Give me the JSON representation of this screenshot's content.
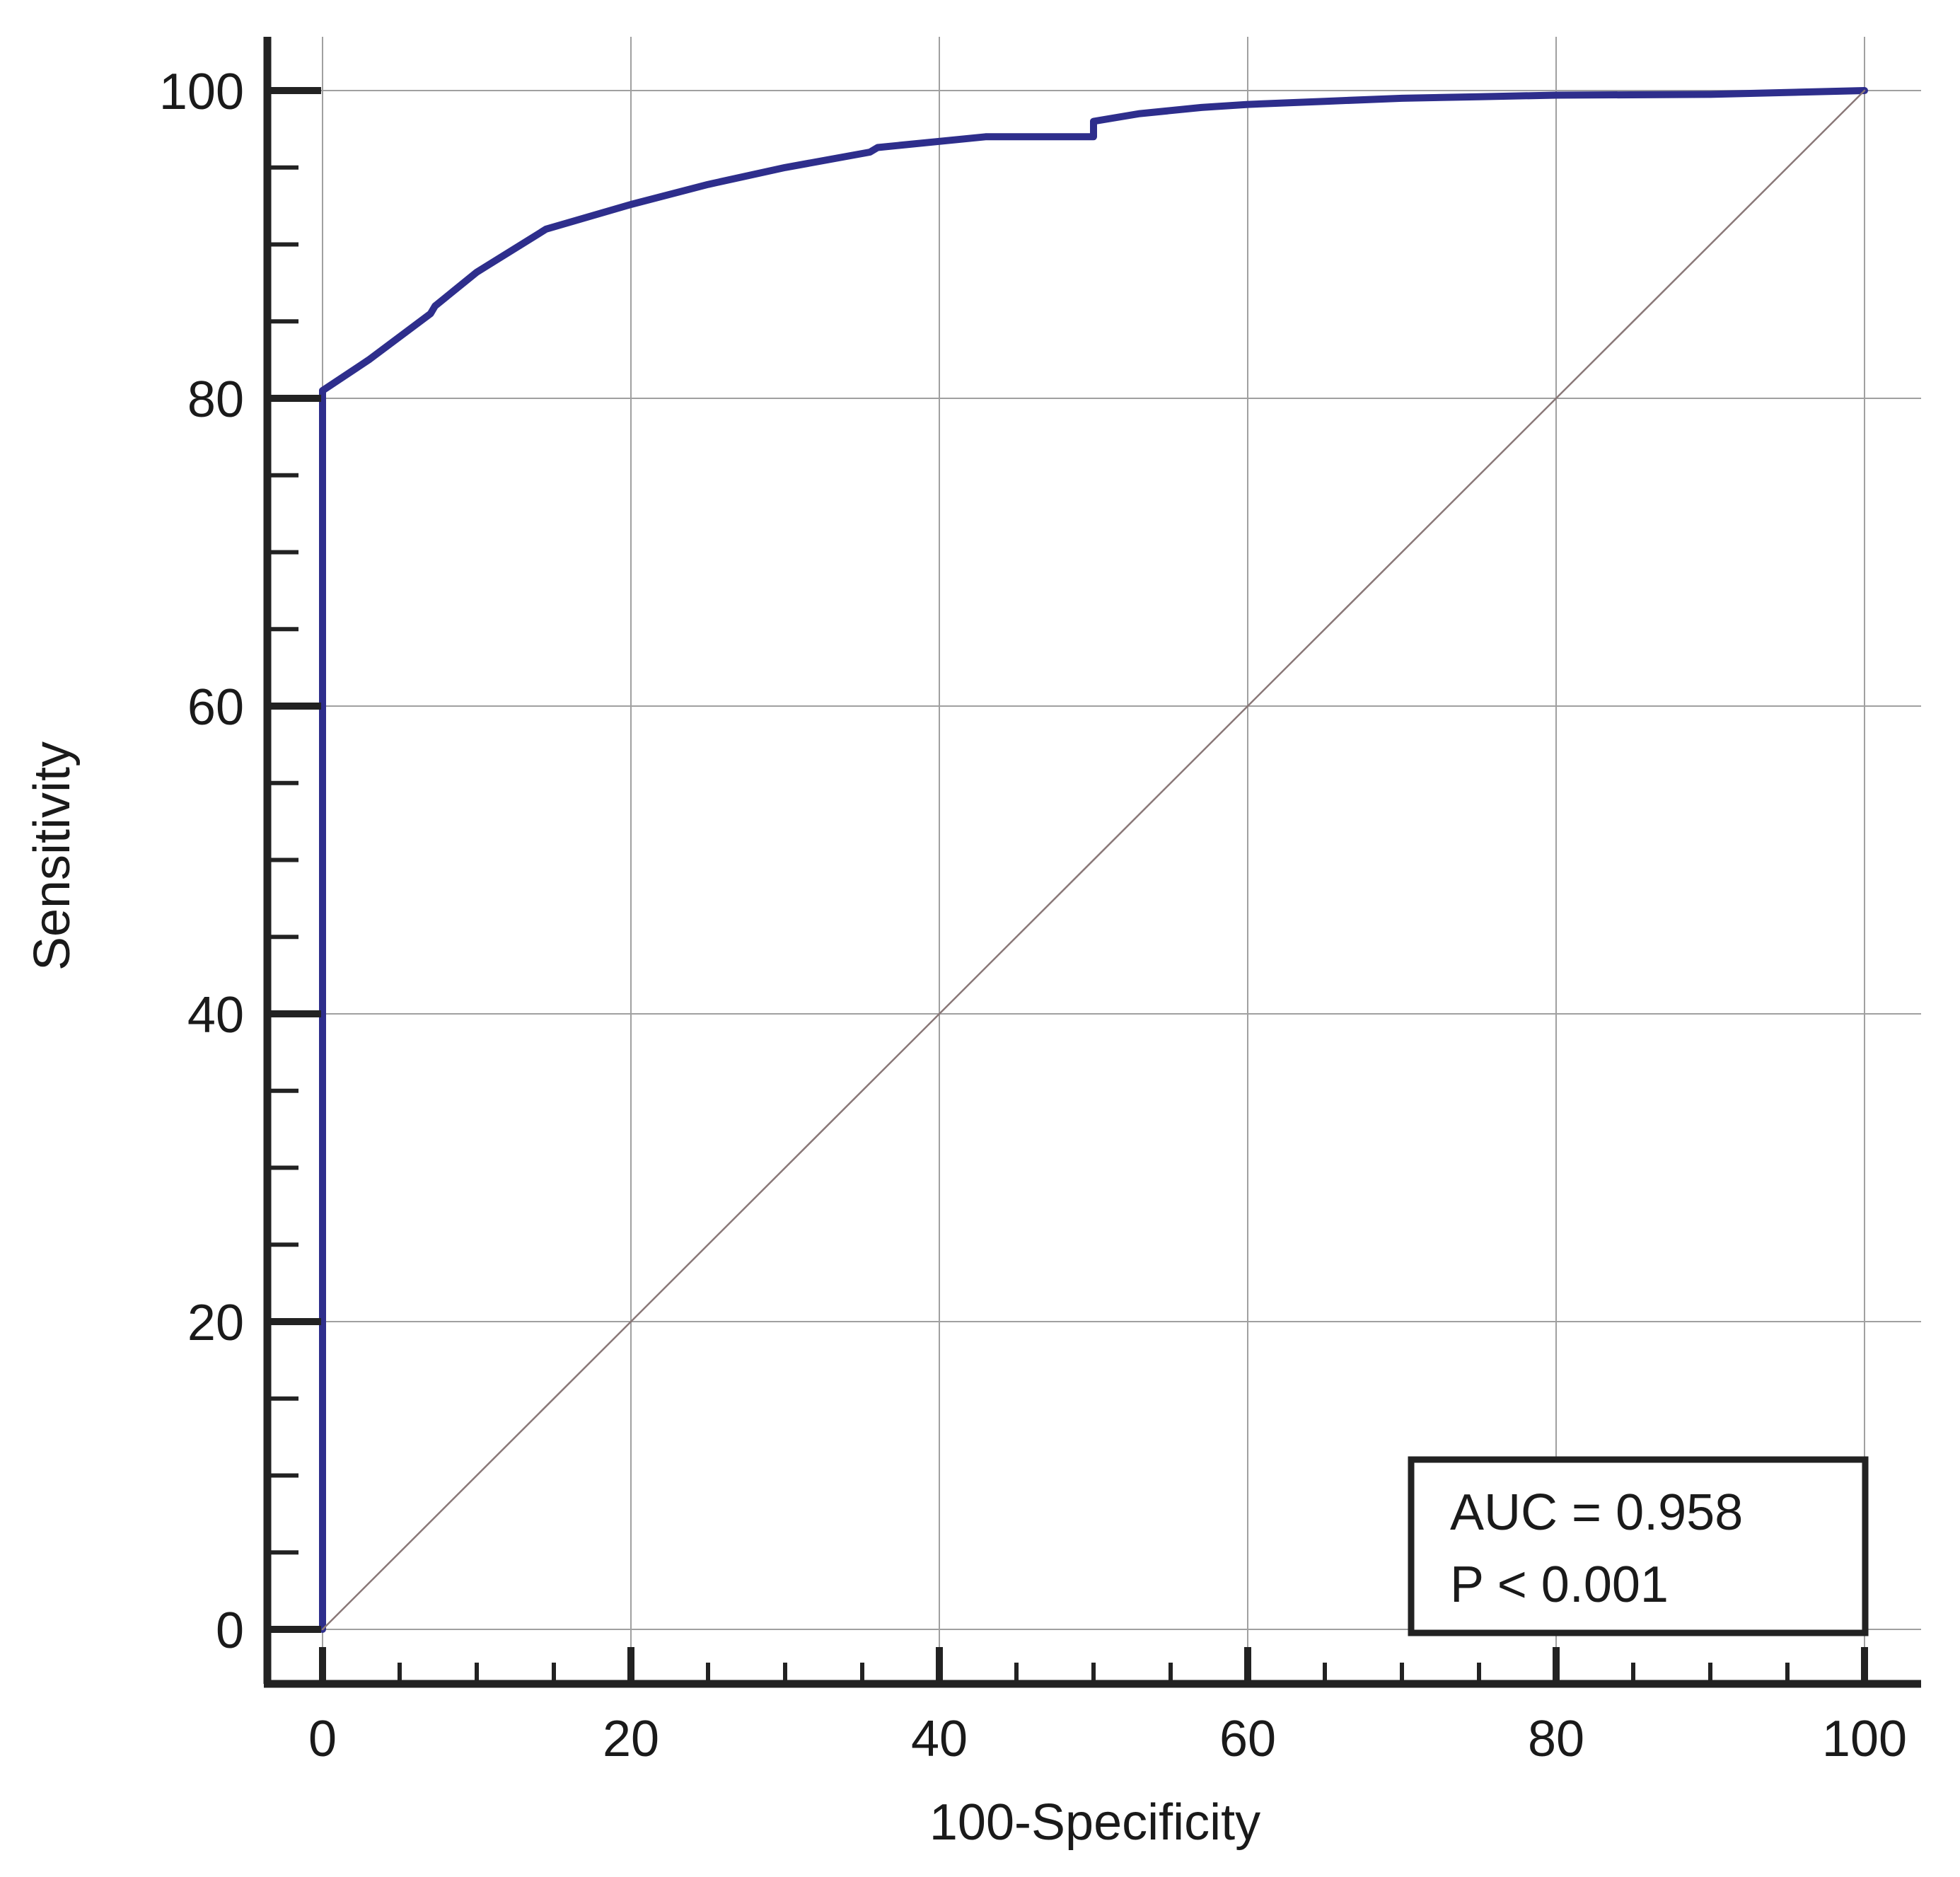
{
  "chart_data": {
    "type": "line",
    "title": "",
    "xlabel": "100-Specificity",
    "ylabel": "Sensitivity",
    "xlim": [
      0,
      100
    ],
    "ylim": [
      0,
      100
    ],
    "x_ticks": [
      0,
      20,
      40,
      60,
      80,
      100
    ],
    "y_ticks": [
      0,
      20,
      40,
      60,
      80,
      100
    ],
    "x_tick_labels": [
      "0",
      "20",
      "40",
      "60",
      "80",
      "100"
    ],
    "y_tick_labels": [
      "0",
      "20",
      "40",
      "60",
      "80",
      "100"
    ],
    "minor_tick_step": 5,
    "grid": true,
    "series": [
      {
        "role": "roc-curve",
        "color": "#2e2e8c",
        "points": [
          [
            0,
            0
          ],
          [
            0,
            80.5
          ],
          [
            3,
            82.5
          ],
          [
            7,
            85.5
          ],
          [
            7.3,
            86
          ],
          [
            10,
            88.2
          ],
          [
            14.5,
            91
          ],
          [
            20,
            92.6
          ],
          [
            25,
            93.9
          ],
          [
            30,
            95
          ],
          [
            35.5,
            96
          ],
          [
            36,
            96.3
          ],
          [
            40,
            96.7
          ],
          [
            43,
            97
          ],
          [
            50,
            97
          ],
          [
            50,
            98
          ],
          [
            53,
            98.5
          ],
          [
            57,
            98.9
          ],
          [
            60,
            99.1
          ],
          [
            65,
            99.3
          ],
          [
            70,
            99.5
          ],
          [
            75,
            99.6
          ],
          [
            80,
            99.7
          ],
          [
            90,
            99.75
          ],
          [
            100,
            100
          ]
        ]
      },
      {
        "role": "reference-diagonal",
        "color": "#8a7878",
        "points": [
          [
            0,
            0
          ],
          [
            100,
            100
          ]
        ]
      }
    ],
    "annotations": [
      "AUC = 0.958",
      "P < 0.001"
    ]
  },
  "colors": {
    "axis": "#222222",
    "grid": "#a0a0a0",
    "roc_curve": "#2e2e8c",
    "diagonal": "#8a7878",
    "annotation_border": "#222222"
  }
}
